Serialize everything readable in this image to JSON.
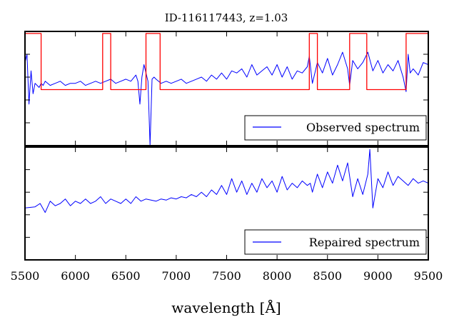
{
  "chart_data": {
    "title": "ID-116117443, z=1.03",
    "xlabel": "wavelength [Å]",
    "xlim": [
      5500,
      9500
    ],
    "x_ticks": [
      5500,
      6000,
      6500,
      7000,
      7500,
      8000,
      8500,
      9000,
      9500
    ],
    "x_tick_labels": [
      "5500",
      "6000",
      "6500",
      "7000",
      "7500",
      "8000",
      "8500",
      "9000",
      "9500"
    ],
    "panels": [
      {
        "type": "line",
        "ylim": [
          -1,
          4.5
        ],
        "legend_position": "lower-right",
        "series": [
          {
            "name": "Observed spectrum",
            "color": "#0000ff",
            "x": [
              5500,
              5520,
              5540,
              5560,
              5580,
              5600,
              5620,
              5640,
              5660,
              5680,
              5700,
              5750,
              5800,
              5850,
              5900,
              5950,
              6000,
              6050,
              6100,
              6150,
              6200,
              6250,
              6300,
              6350,
              6400,
              6450,
              6500,
              6550,
              6600,
              6620,
              6640,
              6660,
              6680,
              6700,
              6720,
              6740,
              6760,
              6780,
              6800,
              6850,
              6900,
              6950,
              7000,
              7050,
              7100,
              7150,
              7200,
              7250,
              7300,
              7350,
              7400,
              7450,
              7500,
              7550,
              7600,
              7650,
              7700,
              7750,
              7800,
              7850,
              7900,
              7950,
              8000,
              8050,
              8100,
              8150,
              8200,
              8250,
              8300,
              8320,
              8350,
              8400,
              8450,
              8500,
              8550,
              8600,
              8650,
              8700,
              8720,
              8750,
              8800,
              8850,
              8900,
              8950,
              9000,
              9050,
              9100,
              9150,
              9200,
              9250,
              9280,
              9300,
              9320,
              9350,
              9400,
              9450,
              9500
            ],
            "values": [
              3.0,
              3.4,
              1.0,
              2.6,
              1.5,
              2.0,
              1.9,
              1.8,
              2.0,
              1.9,
              2.1,
              1.9,
              2.0,
              2.1,
              1.9,
              2.0,
              2.0,
              2.1,
              1.9,
              2.0,
              2.1,
              2.0,
              2.1,
              2.2,
              2.0,
              2.1,
              2.2,
              2.1,
              2.4,
              2.1,
              1.0,
              2.3,
              2.9,
              2.5,
              2.1,
              -1.0,
              2.2,
              2.3,
              2.2,
              2.0,
              2.1,
              2.0,
              2.1,
              2.2,
              2.0,
              2.1,
              2.2,
              2.3,
              2.1,
              2.4,
              2.2,
              2.5,
              2.2,
              2.6,
              2.5,
              2.7,
              2.3,
              2.9,
              2.4,
              2.6,
              2.8,
              2.4,
              2.9,
              2.3,
              2.8,
              2.2,
              2.6,
              2.5,
              2.8,
              3.3,
              2.0,
              3.0,
              2.5,
              3.2,
              2.4,
              2.9,
              3.5,
              2.7,
              1.9,
              3.1,
              2.7,
              3.0,
              3.5,
              2.6,
              3.1,
              2.5,
              2.9,
              2.6,
              3.1,
              2.3,
              1.6,
              3.4,
              2.5,
              2.7,
              2.4,
              3.0,
              2.9
            ]
          },
          {
            "name": "",
            "color": "#ff0000",
            "x": [
              5500,
              5660,
              5660,
              6270,
              6270,
              6350,
              6350,
              6700,
              6700,
              6840,
              6840,
              8320,
              8320,
              8400,
              8400,
              8720,
              8720,
              8890,
              8890,
              9280,
              9280,
              9500
            ],
            "values": [
              4.4,
              4.4,
              1.7,
              1.7,
              4.4,
              4.4,
              1.7,
              1.7,
              4.4,
              4.4,
              1.7,
              1.7,
              4.4,
              4.4,
              1.7,
              1.7,
              4.4,
              4.4,
              1.7,
              1.7,
              4.4,
              4.4
            ]
          }
        ]
      },
      {
        "type": "line",
        "ylim": [
          -1,
          4
        ],
        "legend_position": "lower-right",
        "series": [
          {
            "name": "Repaired spectrum",
            "color": "#0000ff",
            "x": [
              5500,
              5600,
              5650,
              5700,
              5750,
              5800,
              5850,
              5900,
              5950,
              6000,
              6050,
              6100,
              6150,
              6200,
              6250,
              6300,
              6350,
              6400,
              6450,
              6500,
              6550,
              6600,
              6650,
              6700,
              6750,
              6800,
              6850,
              6900,
              6950,
              7000,
              7050,
              7100,
              7150,
              7200,
              7250,
              7300,
              7350,
              7400,
              7450,
              7500,
              7550,
              7600,
              7650,
              7700,
              7750,
              7800,
              7850,
              7900,
              7950,
              8000,
              8050,
              8100,
              8150,
              8200,
              8250,
              8300,
              8330,
              8350,
              8400,
              8450,
              8500,
              8550,
              8600,
              8650,
              8700,
              8730,
              8750,
              8800,
              8850,
              8900,
              8920,
              8950,
              9000,
              9050,
              9100,
              9150,
              9200,
              9250,
              9300,
              9350,
              9400,
              9450,
              9500
            ],
            "values": [
              1.3,
              1.35,
              1.5,
              1.1,
              1.6,
              1.4,
              1.5,
              1.7,
              1.4,
              1.6,
              1.5,
              1.7,
              1.5,
              1.6,
              1.8,
              1.5,
              1.7,
              1.6,
              1.5,
              1.7,
              1.5,
              1.8,
              1.6,
              1.7,
              1.65,
              1.6,
              1.7,
              1.65,
              1.75,
              1.7,
              1.8,
              1.75,
              1.9,
              1.8,
              2.0,
              1.8,
              2.1,
              1.9,
              2.3,
              1.9,
              2.6,
              2.0,
              2.5,
              1.9,
              2.4,
              2.0,
              2.6,
              2.2,
              2.5,
              2.0,
              2.7,
              2.1,
              2.4,
              2.2,
              2.5,
              2.3,
              2.4,
              2.0,
              2.8,
              2.2,
              2.9,
              2.4,
              3.2,
              2.5,
              3.3,
              2.4,
              1.8,
              2.6,
              1.9,
              2.8,
              3.9,
              1.3,
              2.6,
              2.2,
              2.9,
              2.3,
              2.7,
              2.5,
              2.3,
              2.6,
              2.4,
              2.5,
              2.4
            ]
          }
        ]
      }
    ]
  }
}
